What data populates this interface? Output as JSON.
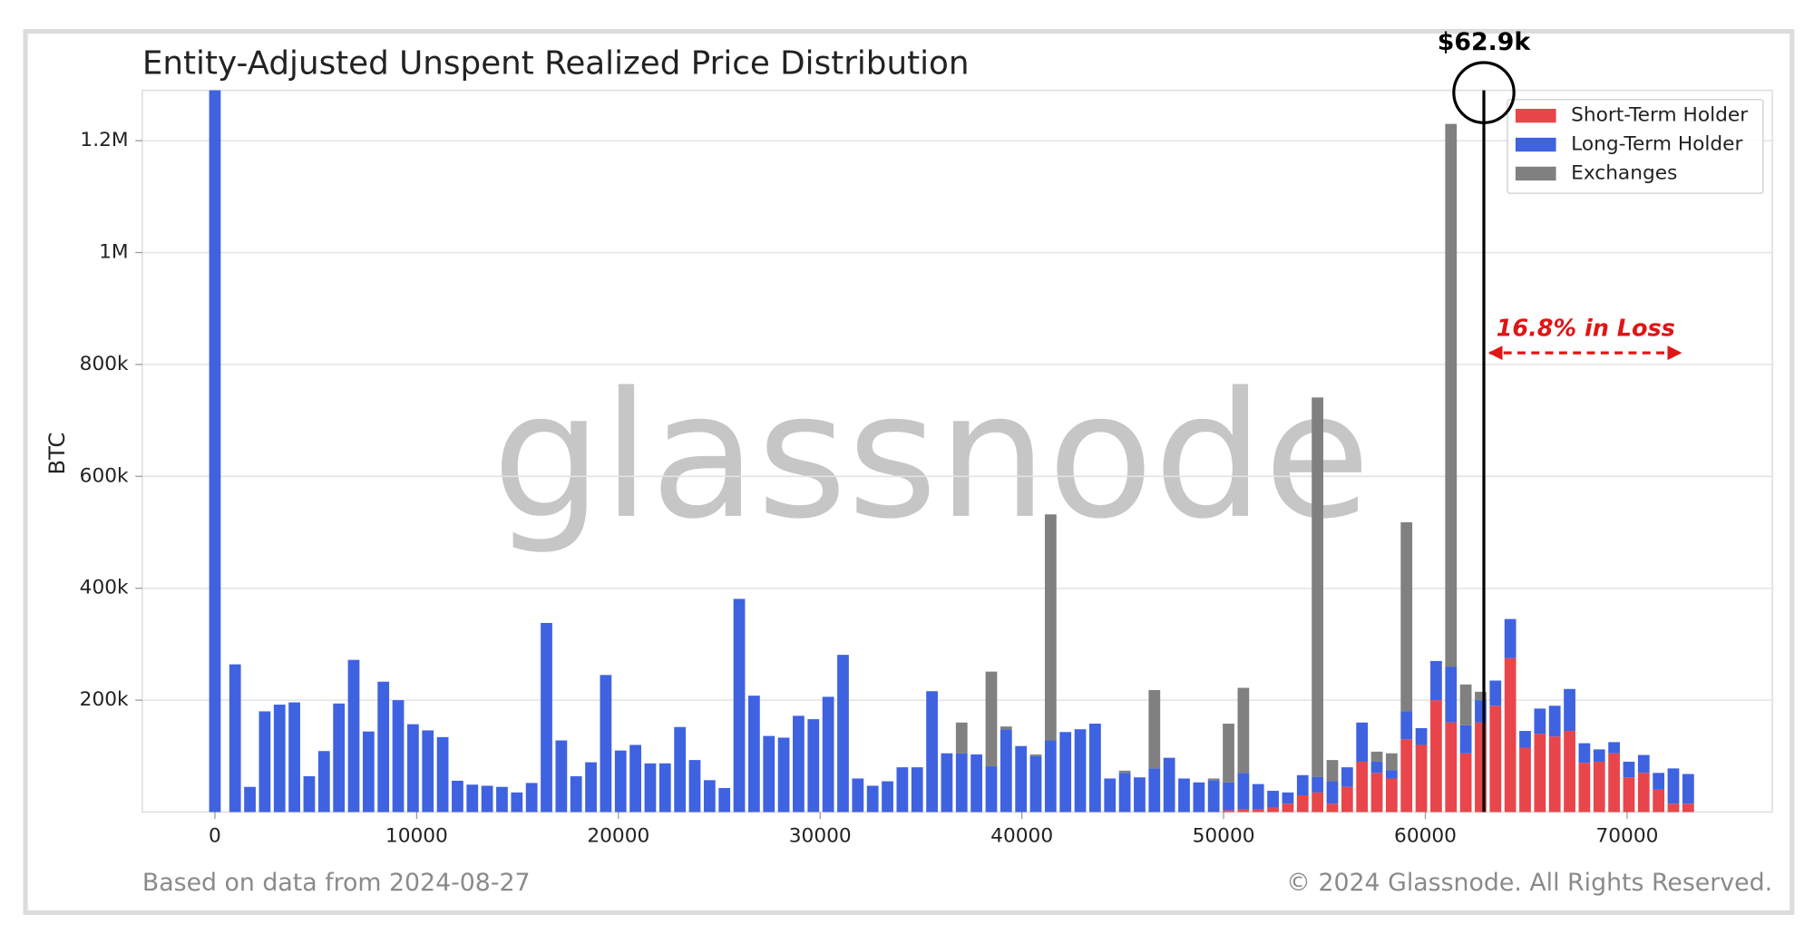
{
  "chart_data": {
    "type": "stacked_bar",
    "title": "Entity-Adjusted Unspent Realized Price Distribution",
    "ylabel": "BTC",
    "watermark": "glassnode",
    "footer_left": "Based on data from 2024-08-27",
    "footer_right": "© 2024 Glassnode. All Rights Reserved.",
    "x": [
      0,
      1000,
      1735,
      2470,
      3205,
      3940,
      4675,
      5410,
      6145,
      6880,
      7615,
      8350,
      9085,
      9820,
      10555,
      11290,
      12025,
      12760,
      13495,
      14230,
      14965,
      15700,
      16435,
      17170,
      17905,
      18640,
      19375,
      20110,
      20845,
      21580,
      22315,
      23050,
      23785,
      24520,
      25255,
      25990,
      26725,
      27460,
      28195,
      28930,
      29665,
      30400,
      31135,
      31870,
      32605,
      33340,
      34075,
      34810,
      35545,
      36280,
      37015,
      37750,
      38485,
      39220,
      39955,
      40690,
      41425,
      42160,
      42895,
      43630,
      44365,
      45100,
      45835,
      46570,
      47305,
      48040,
      48775,
      49510,
      50245,
      50980,
      51715,
      52450,
      53185,
      53920,
      54655,
      55390,
      56125,
      56860,
      57595,
      58330,
      59065,
      59800,
      60535,
      61270,
      62005,
      62740,
      63475,
      64210,
      64945,
      65680,
      66415,
      67150,
      67885,
      68620,
      69355,
      70090,
      70825,
      71560,
      72295,
      73030
    ],
    "series": [
      {
        "name": "Short-Term Holder",
        "color": "#e8464a",
        "values": [
          0,
          0,
          0,
          0,
          0,
          0,
          0,
          0,
          0,
          0,
          0,
          0,
          0,
          0,
          0,
          0,
          0,
          0,
          0,
          0,
          0,
          0,
          0,
          0,
          0,
          0,
          0,
          0,
          0,
          0,
          0,
          0,
          0,
          0,
          0,
          0,
          0,
          0,
          0,
          0,
          0,
          0,
          0,
          0,
          0,
          0,
          0,
          0,
          0,
          0,
          0,
          0,
          0,
          0,
          0,
          0,
          0,
          0,
          0,
          0,
          0,
          0,
          0,
          0,
          0,
          0,
          0,
          0,
          3000,
          5000,
          5000,
          8000,
          15000,
          30000,
          35000,
          15000,
          45000,
          90000,
          70000,
          60000,
          130000,
          120000,
          200000,
          160000,
          105000,
          160000,
          190000,
          275000,
          115000,
          140000,
          135000,
          145000,
          88000,
          90000,
          105000,
          62000,
          70000,
          40000,
          15000,
          15000
        ]
      },
      {
        "name": "Long-Term Holder",
        "color": "#3f62e0",
        "values": [
          1290000,
          264000,
          45000,
          180000,
          192000,
          196000,
          64000,
          109000,
          194000,
          272000,
          144000,
          233000,
          200000,
          157000,
          146000,
          134000,
          56000,
          49000,
          47000,
          45000,
          35000,
          52000,
          338000,
          128000,
          64000,
          89000,
          245000,
          110000,
          120000,
          87000,
          87000,
          152000,
          93000,
          57000,
          43000,
          381000,
          208000,
          136000,
          133000,
          172000,
          166000,
          206000,
          281000,
          60000,
          47000,
          55000,
          80000,
          80000,
          216000,
          105000,
          105000,
          103000,
          82000,
          148000,
          118000,
          100000,
          128000,
          143000,
          148000,
          158000,
          60000,
          70000,
          62000,
          78000,
          97000,
          60000,
          53000,
          57000,
          50000,
          65000,
          45000,
          30000,
          20000,
          36000,
          28000,
          40000,
          35000,
          70000,
          20000,
          15000,
          50000,
          30000,
          70000,
          100000,
          50000,
          40000,
          45000,
          70000,
          30000,
          45000,
          55000,
          75000,
          35000,
          22000,
          20000,
          28000,
          32000,
          30000,
          63000,
          53000
        ]
      },
      {
        "name": "Exchanges",
        "color": "#808080",
        "values": [
          0,
          0,
          0,
          0,
          0,
          0,
          0,
          0,
          0,
          0,
          0,
          0,
          0,
          0,
          0,
          0,
          0,
          0,
          0,
          0,
          0,
          0,
          0,
          0,
          0,
          0,
          0,
          0,
          0,
          0,
          0,
          0,
          0,
          0,
          0,
          0,
          0,
          0,
          0,
          0,
          0,
          0,
          0,
          0,
          0,
          0,
          0,
          0,
          0,
          0,
          55000,
          0,
          169000,
          5000,
          0,
          3000,
          404000,
          0,
          0,
          0,
          0,
          4000,
          0,
          140000,
          0,
          0,
          0,
          3000,
          105000,
          152000,
          0,
          0,
          0,
          0,
          678000,
          38000,
          0,
          0,
          18000,
          30000,
          338000,
          0,
          0,
          970000,
          73000,
          15000,
          0,
          0,
          0,
          0,
          0,
          0,
          0,
          0,
          0,
          0,
          0,
          0,
          0,
          0
        ]
      }
    ],
    "xlim": [
      -3600,
      77200
    ],
    "ylim": [
      0,
      1290000
    ],
    "xticks": [
      0,
      10000,
      20000,
      30000,
      40000,
      50000,
      60000,
      70000
    ],
    "yticks": [
      {
        "value": 200000,
        "label": "200k"
      },
      {
        "value": 400000,
        "label": "400k"
      },
      {
        "value": 600000,
        "label": "600k"
      },
      {
        "value": 800000,
        "label": "800k"
      },
      {
        "value": 1000000,
        "label": "1M"
      },
      {
        "value": 1200000,
        "label": "1.2M"
      }
    ],
    "grid": true,
    "legend": "upper right",
    "annotations": [
      {
        "text": "$62.9k",
        "x": 62900
      },
      {
        "text": "16.8% in Loss"
      }
    ]
  }
}
